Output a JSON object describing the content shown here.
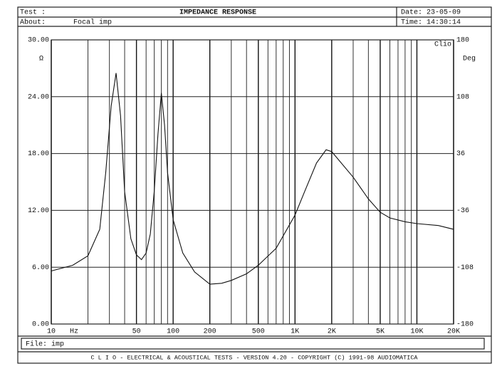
{
  "header": {
    "test_label": "Test :",
    "title": "IMPEDANCE RESPONSE",
    "date": "Date: 23-05-09",
    "about_label": "About:",
    "about": "Focal imp",
    "time": "Time: 14:30:14"
  },
  "chart_data": {
    "type": "line",
    "xscale": "log",
    "grid": true,
    "y_unit": "Ω",
    "y2_unit": "Deg",
    "brand": "Clio",
    "x_unit": "Hz",
    "x": [
      10,
      15,
      20,
      25,
      28,
      31,
      34,
      37,
      40,
      45,
      50,
      55,
      60,
      65,
      70,
      75,
      80,
      85,
      90,
      100,
      120,
      150,
      200,
      250,
      300,
      400,
      500,
      700,
      1000,
      1200,
      1500,
      1800,
      2000,
      3000,
      4000,
      5000,
      6000,
      8000,
      10000,
      15000,
      20000
    ],
    "series": [
      {
        "name": "impedance",
        "color": "#111111",
        "values": [
          5.6,
          6.2,
          7.2,
          10,
          16,
          23,
          26.5,
          22,
          14,
          9,
          7.3,
          6.8,
          7.5,
          9.5,
          14,
          20,
          24.4,
          21,
          16,
          11,
          7.5,
          5.5,
          4.2,
          4.3,
          4.6,
          5.3,
          6.2,
          8,
          11.5,
          14,
          17,
          18.4,
          18.2,
          15.5,
          13.2,
          11.8,
          11.2,
          10.8,
          10.6,
          10.4,
          10
        ]
      }
    ],
    "xlim": [
      10,
      20000
    ],
    "xticks": [
      10,
      50,
      100,
      200,
      500,
      {
        "value": 1000,
        "label": "1K"
      },
      {
        "value": 2000,
        "label": "2K"
      },
      {
        "value": 5000,
        "label": "5K"
      },
      {
        "value": 10000,
        "label": "10K"
      },
      {
        "value": 20000,
        "label": "20K"
      }
    ],
    "x_minor_grid": [
      20,
      30,
      40,
      60,
      70,
      80,
      90,
      300,
      400,
      600,
      700,
      800,
      900,
      3000,
      4000,
      6000,
      7000,
      8000,
      9000
    ],
    "ylim": [
      0,
      30
    ],
    "yticks": [
      {
        "value": 0,
        "label": "0.00"
      },
      {
        "value": 6,
        "label": "6.00"
      },
      {
        "value": 12,
        "label": "12.00"
      },
      {
        "value": 18,
        "label": "18.00"
      },
      {
        "value": 24,
        "label": "24.00"
      },
      {
        "value": 30,
        "label": "30.00"
      }
    ],
    "y2lim": [
      -180,
      180
    ],
    "y2ticks": [
      -180,
      -108,
      -36,
      36,
      108,
      180
    ]
  },
  "footer": {
    "file": "File: imp",
    "copyright": "C L I O  -  ELECTRICAL & ACOUSTICAL TESTS  -  VERSION 4.20  -  COPYRIGHT (C) 1991-98 AUDIOMATICA"
  }
}
